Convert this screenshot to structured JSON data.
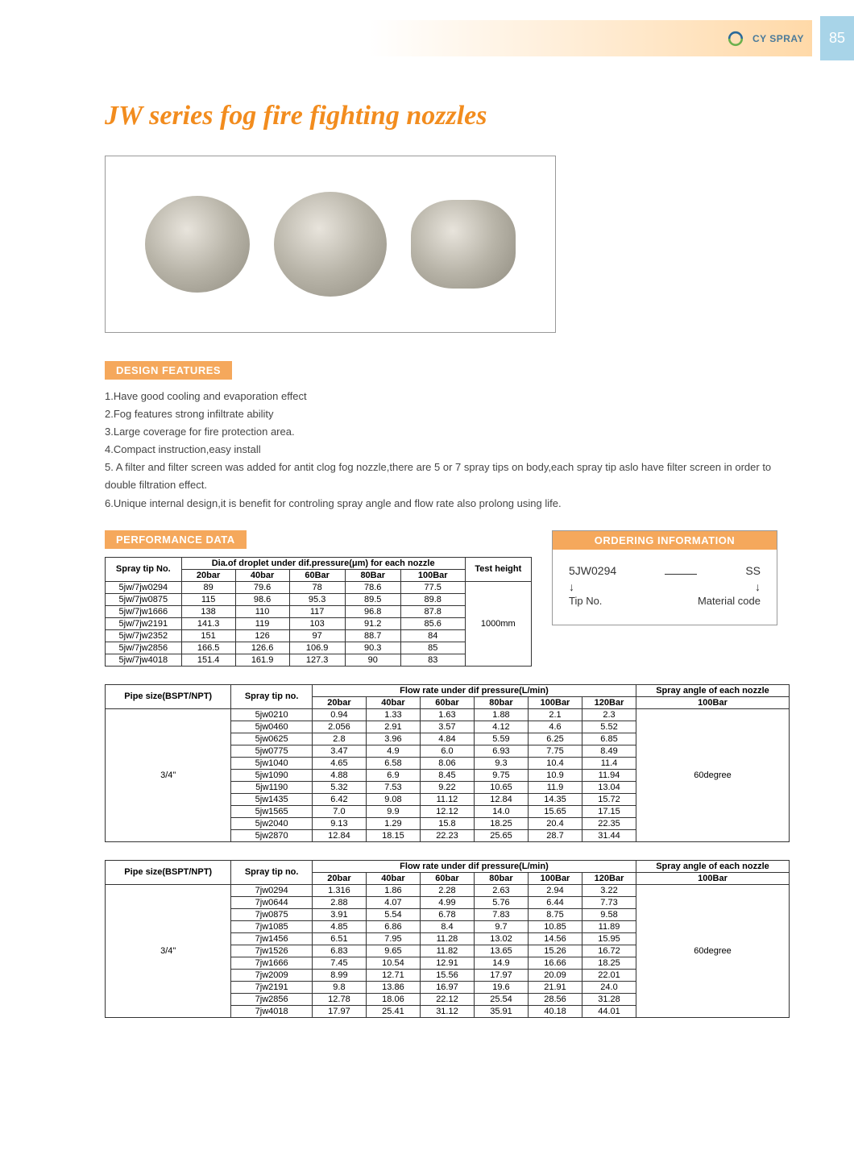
{
  "header": {
    "brand": "CY SPRAY",
    "page_number": "85"
  },
  "title": "JW series fog fire fighting nozzles",
  "sections": {
    "design_features": "DESIGN FEATURES",
    "performance_data": "PERFORMANCE DATA",
    "ordering_info": "ORDERING INFORMATION"
  },
  "features": [
    "1.Have good cooling and evaporation effect",
    "2.Fog features strong infiltrate ability",
    "3.Large coverage for fire protection area.",
    "4.Compact instruction,easy install",
    "5. A filter and filter screen was added for antit clog fog nozzle,there are 5 or 7 spray tips on body,each spray tip aslo have filter screen in order to double filtration effect.",
    "6.Unique internal design,it is benefit for controling spray angle and flow rate also prolong using life."
  ],
  "perf_table": {
    "col_spray": "Spray tip No.",
    "col_group": "Dia.of droplet under dif.pressure(μm) for each nozzle",
    "col_test": "Test height",
    "cols": [
      "20bar",
      "40bar",
      "60Bar",
      "80Bar",
      "100Bar"
    ],
    "test_height": "1000mm",
    "rows": [
      {
        "tip": "5jw/7jw0294",
        "v": [
          "89",
          "79.6",
          "78",
          "78.6",
          "77.5"
        ]
      },
      {
        "tip": "5jw/7jw0875",
        "v": [
          "115",
          "98.6",
          "95.3",
          "89.5",
          "89.8"
        ]
      },
      {
        "tip": "5jw/7jw1666",
        "v": [
          "138",
          "110",
          "117",
          "96.8",
          "87.8"
        ]
      },
      {
        "tip": "5jw/7jw2191",
        "v": [
          "141.3",
          "119",
          "103",
          "91.2",
          "85.6"
        ]
      },
      {
        "tip": "5jw/7jw2352",
        "v": [
          "151",
          "126",
          "97",
          "88.7",
          "84"
        ]
      },
      {
        "tip": "5jw/7jw2856",
        "v": [
          "166.5",
          "126.6",
          "106.9",
          "90.3",
          "85"
        ]
      },
      {
        "tip": "5jw/7jw4018",
        "v": [
          "151.4",
          "161.9",
          "127.3",
          "90",
          "83"
        ]
      }
    ]
  },
  "order": {
    "example_tip": "5JW0294",
    "example_mat": "SS",
    "label_tip": "Tip No.",
    "label_mat": "Material code"
  },
  "flow_headers": {
    "pipe": "Pipe size(BSPT/NPT)",
    "tip": "Spray tip no.",
    "flow_group": "Flow rate under dif pressure(L/min)",
    "angle_group": "Spray angle of each nozzle",
    "cols": [
      "20bar",
      "40bar",
      "60bar",
      "80bar",
      "100Bar",
      "120Bar"
    ],
    "angle_col": "100Bar"
  },
  "flow1": {
    "pipe": "3/4\"",
    "angle": "60degree",
    "rows": [
      {
        "tip": "5jw0210",
        "v": [
          "0.94",
          "1.33",
          "1.63",
          "1.88",
          "2.1",
          "2.3"
        ]
      },
      {
        "tip": "5jw0460",
        "v": [
          "2.056",
          "2.91",
          "3.57",
          "4.12",
          "4.6",
          "5.52"
        ]
      },
      {
        "tip": "5jw0625",
        "v": [
          "2.8",
          "3.96",
          "4.84",
          "5.59",
          "6.25",
          "6.85"
        ]
      },
      {
        "tip": "5jw0775",
        "v": [
          "3.47",
          "4.9",
          "6.0",
          "6.93",
          "7.75",
          "8.49"
        ]
      },
      {
        "tip": "5jw1040",
        "v": [
          "4.65",
          "6.58",
          "8.06",
          "9.3",
          "10.4",
          "11.4"
        ]
      },
      {
        "tip": "5jw1090",
        "v": [
          "4.88",
          "6.9",
          "8.45",
          "9.75",
          "10.9",
          "11.94"
        ]
      },
      {
        "tip": "5jw1190",
        "v": [
          "5.32",
          "7.53",
          "9.22",
          "10.65",
          "11.9",
          "13.04"
        ]
      },
      {
        "tip": "5jw1435",
        "v": [
          "6.42",
          "9.08",
          "11.12",
          "12.84",
          "14.35",
          "15.72"
        ]
      },
      {
        "tip": "5jw1565",
        "v": [
          "7.0",
          "9.9",
          "12.12",
          "14.0",
          "15.65",
          "17.15"
        ]
      },
      {
        "tip": "5jw2040",
        "v": [
          "9.13",
          "1.29",
          "15.8",
          "18.25",
          "20.4",
          "22.35"
        ]
      },
      {
        "tip": "5jw2870",
        "v": [
          "12.84",
          "18.15",
          "22.23",
          "25.65",
          "28.7",
          "31.44"
        ]
      }
    ]
  },
  "flow2": {
    "pipe": "3/4\"",
    "angle": "60degree",
    "rows": [
      {
        "tip": "7jw0294",
        "v": [
          "1.316",
          "1.86",
          "2.28",
          "2.63",
          "2.94",
          "3.22"
        ]
      },
      {
        "tip": "7jw0644",
        "v": [
          "2.88",
          "4.07",
          "4.99",
          "5.76",
          "6.44",
          "7.73"
        ]
      },
      {
        "tip": "7jw0875",
        "v": [
          "3.91",
          "5.54",
          "6.78",
          "7.83",
          "8.75",
          "9.58"
        ]
      },
      {
        "tip": "7jw1085",
        "v": [
          "4.85",
          "6.86",
          "8.4",
          "9.7",
          "10.85",
          "11.89"
        ]
      },
      {
        "tip": "7jw1456",
        "v": [
          "6.51",
          "7.95",
          "11.28",
          "13.02",
          "14.56",
          "15.95"
        ]
      },
      {
        "tip": "7jw1526",
        "v": [
          "6.83",
          "9.65",
          "11.82",
          "13.65",
          "15.26",
          "16.72"
        ]
      },
      {
        "tip": "7jw1666",
        "v": [
          "7.45",
          "10.54",
          "12.91",
          "14.9",
          "16.66",
          "18.25"
        ]
      },
      {
        "tip": "7jw2009",
        "v": [
          "8.99",
          "12.71",
          "15.56",
          "17.97",
          "20.09",
          "22.01"
        ]
      },
      {
        "tip": "7jw2191",
        "v": [
          "9.8",
          "13.86",
          "16.97",
          "19.6",
          "21.91",
          "24.0"
        ]
      },
      {
        "tip": "7jw2856",
        "v": [
          "12.78",
          "18.06",
          "22.12",
          "25.54",
          "28.56",
          "31.28"
        ]
      },
      {
        "tip": "7jw4018",
        "v": [
          "17.97",
          "25.41",
          "31.12",
          "35.91",
          "40.18",
          "44.01"
        ]
      }
    ]
  },
  "colors": {
    "accent": "#f28c1e",
    "section_bg": "#f5a85c",
    "page_num_bg": "#a8d4e8",
    "brand": "#4a7a9a"
  }
}
